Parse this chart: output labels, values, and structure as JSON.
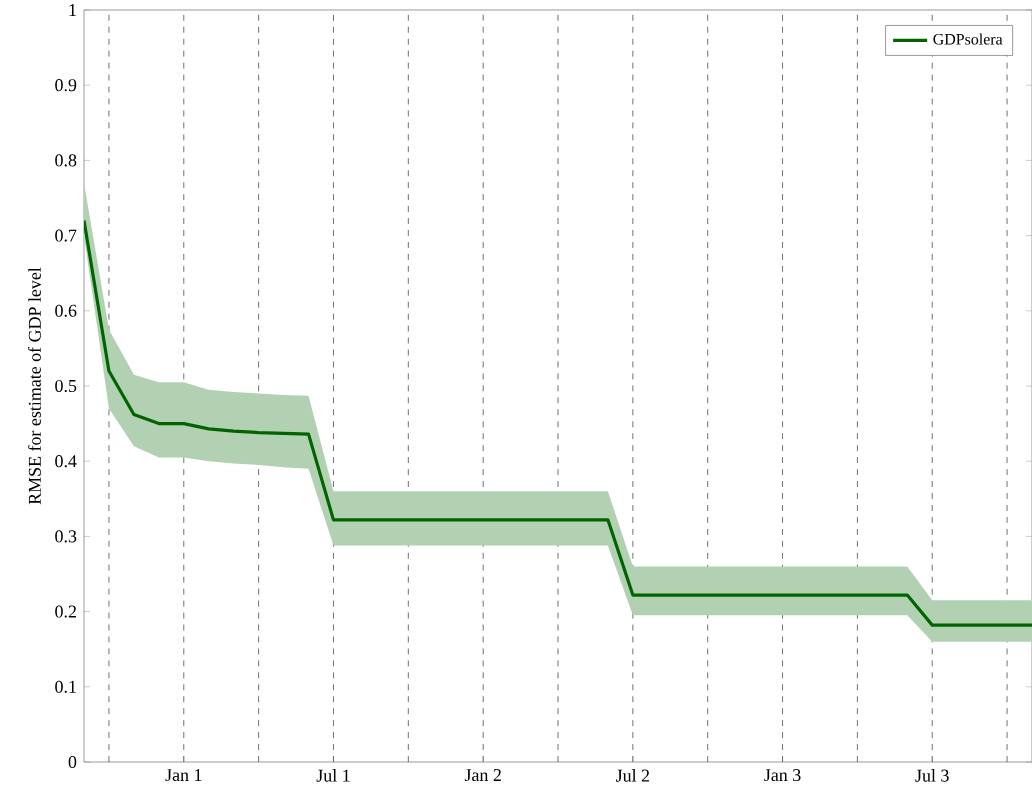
{
  "chart_data": {
    "type": "line",
    "ylabel": "RMSE for estimate of GDP level",
    "categories": [
      null,
      null,
      null,
      null,
      "Jan 1",
      null,
      null,
      null,
      null,
      null,
      "Jul 1",
      null,
      null,
      null,
      null,
      null,
      "Jan 2",
      null,
      null,
      null,
      null,
      null,
      "Jul 2",
      null,
      null,
      null,
      null,
      null,
      "Jan 3",
      null,
      null,
      null,
      null,
      null,
      "Jul 3",
      null,
      null,
      null,
      null
    ],
    "series": [
      {
        "name": "GDPsolera",
        "color": "#006400",
        "values": [
          0.72,
          0.52,
          0.462,
          0.45,
          0.45,
          0.443,
          0.44,
          0.438,
          0.437,
          0.436,
          0.322,
          0.322,
          0.322,
          0.322,
          0.322,
          0.322,
          0.322,
          0.322,
          0.322,
          0.322,
          0.322,
          0.322,
          0.222,
          0.222,
          0.222,
          0.222,
          0.222,
          0.222,
          0.222,
          0.222,
          0.222,
          0.222,
          0.222,
          0.222,
          0.182,
          0.182,
          0.182,
          0.182,
          0.182
        ],
        "lower": [
          0.7,
          0.47,
          0.42,
          0.405,
          0.405,
          0.4,
          0.397,
          0.395,
          0.392,
          0.39,
          0.288,
          0.288,
          0.288,
          0.288,
          0.288,
          0.288,
          0.288,
          0.288,
          0.288,
          0.288,
          0.288,
          0.288,
          0.195,
          0.195,
          0.195,
          0.195,
          0.195,
          0.195,
          0.195,
          0.195,
          0.195,
          0.195,
          0.195,
          0.195,
          0.16,
          0.16,
          0.16,
          0.16,
          0.16
        ],
        "upper": [
          0.77,
          0.575,
          0.515,
          0.505,
          0.505,
          0.495,
          0.492,
          0.49,
          0.488,
          0.487,
          0.36,
          0.36,
          0.36,
          0.36,
          0.36,
          0.36,
          0.36,
          0.36,
          0.36,
          0.36,
          0.36,
          0.36,
          0.26,
          0.26,
          0.26,
          0.26,
          0.26,
          0.26,
          0.26,
          0.26,
          0.26,
          0.26,
          0.26,
          0.26,
          0.215,
          0.215,
          0.215,
          0.215,
          0.215
        ]
      }
    ],
    "ylim": [
      0,
      1
    ],
    "yticks": [
      0,
      0.1,
      0.2,
      0.3,
      0.4,
      0.5,
      0.6,
      0.7,
      0.8,
      0.9,
      1
    ],
    "grid": "x",
    "legend": "top right",
    "marker": "none",
    "line_style": "solid"
  }
}
